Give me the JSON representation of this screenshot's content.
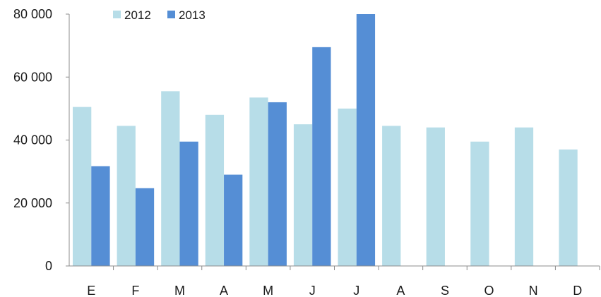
{
  "chart_data": {
    "type": "bar",
    "categories": [
      "E",
      "F",
      "M",
      "A",
      "M",
      "J",
      "J",
      "A",
      "S",
      "O",
      "N",
      "D"
    ],
    "series": [
      {
        "name": "2012",
        "color": "#b7dde8",
        "values": [
          50500,
          44500,
          55500,
          48000,
          53500,
          45000,
          50000,
          44500,
          44000,
          39500,
          44000,
          37000
        ]
      },
      {
        "name": "2013",
        "color": "#558ed5",
        "values": [
          31700,
          24700,
          39500,
          29000,
          52000,
          69500,
          80000,
          null,
          null,
          null,
          null,
          null
        ]
      }
    ],
    "ylim": [
      0,
      80000
    ],
    "yticks": [
      0,
      20000,
      40000,
      60000,
      80000
    ],
    "ytick_labels": [
      "0",
      "20 000",
      "40 000",
      "60 000",
      "80 000"
    ],
    "grid": false,
    "legend_position": "top-left"
  }
}
